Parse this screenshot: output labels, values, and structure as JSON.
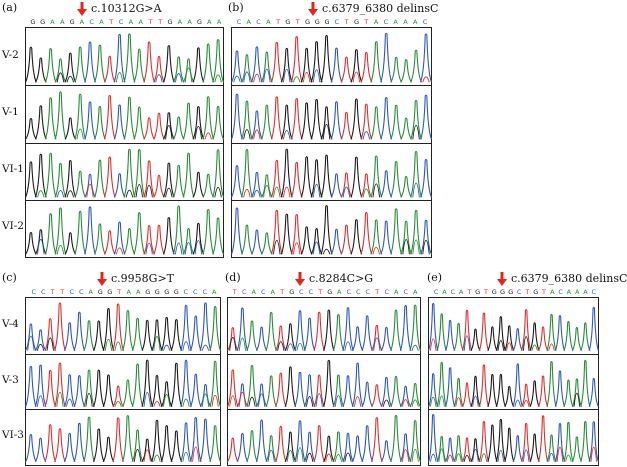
{
  "colors": {
    "A": "#2a8a3a",
    "C": "#2f57b5",
    "G": "#1a1a1a",
    "T": "#d83030",
    "arrow": "#e0261e"
  },
  "panels": [
    {
      "id": "a",
      "label": "(a)",
      "mutation": "c.10312G>A",
      "sequence": "GGAAGACATCAATTGAAGAA",
      "rows": [
        "V-2",
        "V-1",
        "VI-1",
        "VI-2"
      ]
    },
    {
      "id": "b",
      "label": "(b)",
      "mutation": "c.6379_6380 delinsC",
      "sequence": "CACATGTGGGCTGTACAAAC",
      "rows": [
        "",
        "",
        "",
        ""
      ]
    },
    {
      "id": "c",
      "label": "(c)",
      "mutation": "c.9958G>T",
      "sequence": "CCTTCCAGGTAAGGGGCCCA",
      "rows": [
        "V-4",
        "V-3",
        "VI-3"
      ]
    },
    {
      "id": "d",
      "label": "(d)",
      "mutation": "c.8284C>G",
      "sequence": "TCACATGCCTGACCCTCACA",
      "rows": [
        "",
        "",
        ""
      ]
    },
    {
      "id": "e",
      "label": "(e)",
      "mutation": "c.6379_6380 delinsC",
      "sequence": "CACATGTGGGCTGTACAAAC",
      "rows": [
        "",
        "",
        ""
      ]
    }
  ]
}
